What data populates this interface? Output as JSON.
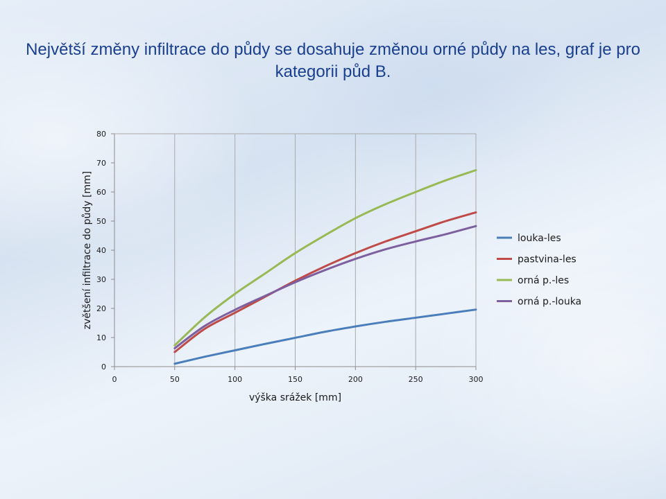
{
  "slide": {
    "title": "Největší změny infiltrace do půdy se dosahuje změnou orné půdy na les, graf je pro kategorii půd B."
  },
  "chart_data": {
    "type": "line",
    "title": "",
    "xlabel": "výška srážek [mm]",
    "ylabel": "zvětšení infiltrace do půdy [mm]",
    "xlim": [
      0,
      300
    ],
    "ylim": [
      0,
      80
    ],
    "xticks": [
      0,
      50,
      100,
      150,
      200,
      250,
      300
    ],
    "yticks": [
      0,
      10,
      20,
      30,
      40,
      50,
      60,
      70,
      80
    ],
    "grid": "vertical",
    "legend_position": "right",
    "x": [
      50,
      75,
      100,
      125,
      150,
      175,
      200,
      225,
      250,
      275,
      300
    ],
    "series": [
      {
        "name": "louka-les",
        "color": "#4a7ebb",
        "values": [
          1,
          3.4,
          5.6,
          7.8,
          9.9,
          12,
          13.8,
          15.4,
          16.8,
          18.2,
          19.6
        ]
      },
      {
        "name": "pastvina-les",
        "color": "#be4b48",
        "values": [
          5,
          13,
          18.5,
          24,
          29.5,
          34.5,
          39,
          43,
          46.5,
          50,
          53
        ]
      },
      {
        "name": "orná p.-les",
        "color": "#98b954",
        "values": [
          7.3,
          17,
          25,
          32,
          39,
          45.2,
          51,
          55.8,
          60,
          64,
          67.5
        ]
      },
      {
        "name": "orná p.-louka",
        "color": "#7d5fa0",
        "values": [
          6.3,
          14,
          19.5,
          24.3,
          29,
          33.2,
          37,
          40.3,
          43,
          45.5,
          48.3
        ]
      }
    ]
  }
}
